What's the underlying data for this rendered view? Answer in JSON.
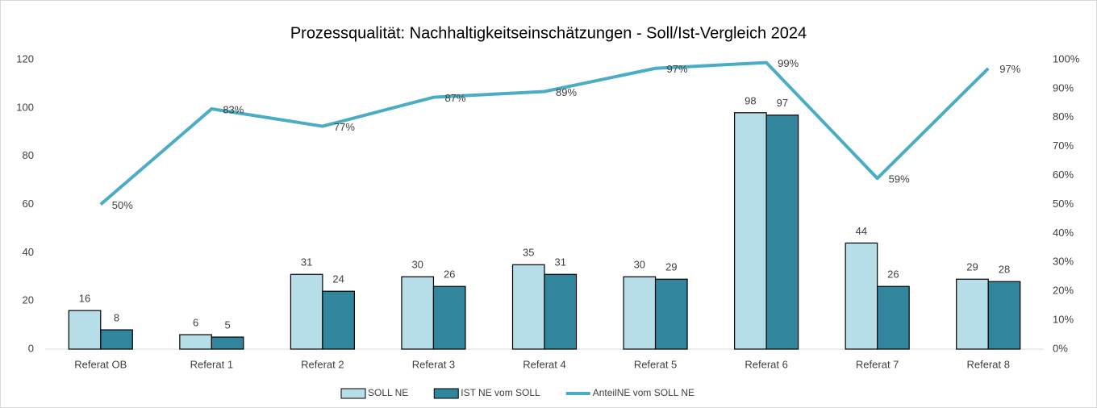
{
  "chart_data": {
    "type": "bar",
    "title": "Prozessqualität: Nachhaltigkeitseinschätzungen - Soll/Ist-Vergleich 2024",
    "categories": [
      "Referat OB",
      "Referat 1",
      "Referat 2",
      "Referat 3",
      "Referat 4",
      "Referat 5",
      "Referat 6",
      "Referat 7",
      "Referat 8"
    ],
    "series": [
      {
        "name": "SOLL NE",
        "type": "bar",
        "color": "#b7dde8",
        "values": [
          16,
          6,
          31,
          30,
          35,
          30,
          98,
          44,
          29
        ]
      },
      {
        "name": "IST NE vom SOLL",
        "type": "bar",
        "color": "#31859c",
        "values": [
          8,
          5,
          24,
          26,
          31,
          29,
          97,
          26,
          28
        ]
      },
      {
        "name": "AnteilNE vom SOLL NE",
        "type": "line",
        "axis": "y2",
        "color": "#4bacc6",
        "values": [
          50,
          83,
          77,
          87,
          89,
          97,
          99,
          59,
          97
        ],
        "value_labels": [
          "50%",
          "83%",
          "77%",
          "87%",
          "89%",
          "97%",
          "99%",
          "59%",
          "97%"
        ]
      }
    ],
    "ylim": [
      0,
      120
    ],
    "yticks": [
      0,
      20,
      40,
      60,
      80,
      100,
      120
    ],
    "y2lim": [
      0,
      100
    ],
    "y2ticks": [
      {
        "value": 0,
        "label": "0%"
      },
      {
        "value": 10,
        "label": "10%"
      },
      {
        "value": 20,
        "label": "20%"
      },
      {
        "value": 30,
        "label": "30%"
      },
      {
        "value": 40,
        "label": "40%"
      },
      {
        "value": 50,
        "label": "50%"
      },
      {
        "value": 60,
        "label": "60%"
      },
      {
        "value": 70,
        "label": "70%"
      },
      {
        "value": 80,
        "label": "80%"
      },
      {
        "value": 90,
        "label": "90%"
      },
      {
        "value": 100,
        "label": "100%"
      }
    ],
    "legend": "bottom"
  }
}
